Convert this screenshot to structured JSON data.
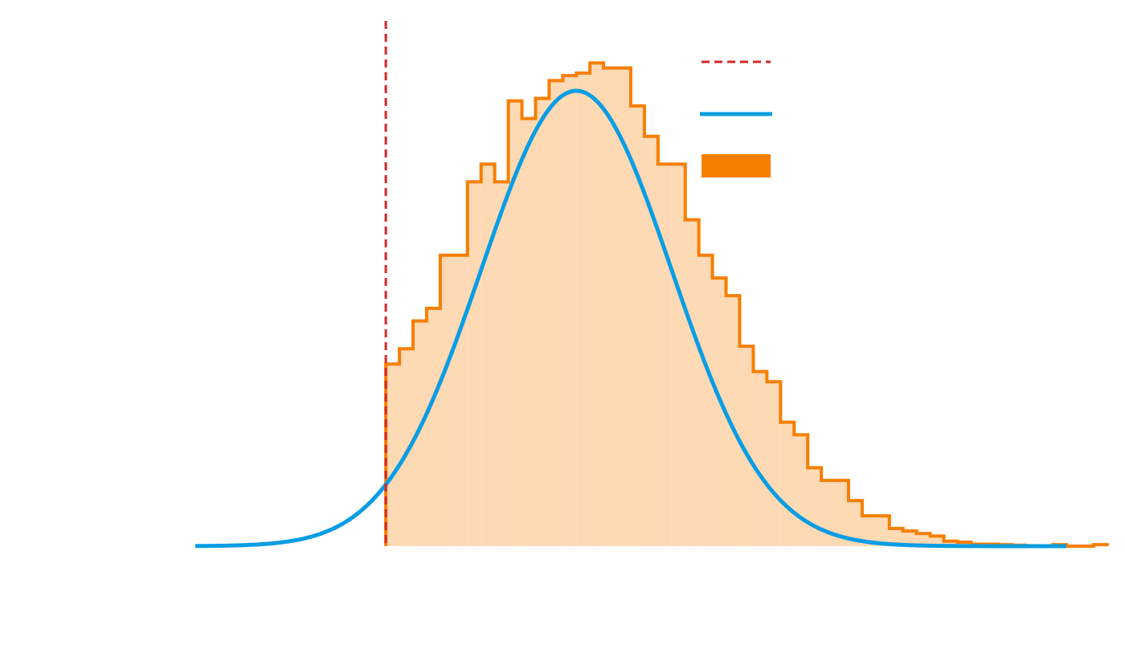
{
  "chart_data": {
    "type": "histogram",
    "title": "",
    "xlabel": "",
    "ylabel": "",
    "xlim": [
      -1.0,
      2.2
    ],
    "ylim": [
      0,
      1.0
    ],
    "grid": false,
    "legend_placement": "top-right",
    "threshold": {
      "x": -0.3,
      "style": "dashed",
      "color": "#d62728"
    },
    "curve": {
      "color": "#0a9de3",
      "mu": 0.4,
      "sigma": 0.35,
      "peak": 0.9,
      "x_start": -1.0,
      "x_end": 2.2
    },
    "histogram": {
      "color": "#f77f00",
      "fill": "#fdd9b4",
      "bin_start": -0.3,
      "bin_width": 0.05,
      "values": [
        0.36,
        0.39,
        0.445,
        0.47,
        0.575,
        0.575,
        0.72,
        0.755,
        0.72,
        0.88,
        0.845,
        0.885,
        0.92,
        0.93,
        0.935,
        0.955,
        0.945,
        0.945,
        0.87,
        0.81,
        0.755,
        0.755,
        0.645,
        0.575,
        0.53,
        0.495,
        0.395,
        0.345,
        0.325,
        0.245,
        0.22,
        0.155,
        0.13,
        0.13,
        0.09,
        0.06,
        0.06,
        0.035,
        0.03,
        0.025,
        0.02,
        0.01,
        0.008,
        0.004,
        0.004,
        0.003,
        0.002,
        0.001,
        0.0,
        0.003,
        0.0,
        0.0,
        0.003
      ]
    },
    "legend": [
      {
        "kind": "threshold-line"
      },
      {
        "kind": "curve"
      },
      {
        "kind": "histogram"
      }
    ]
  }
}
